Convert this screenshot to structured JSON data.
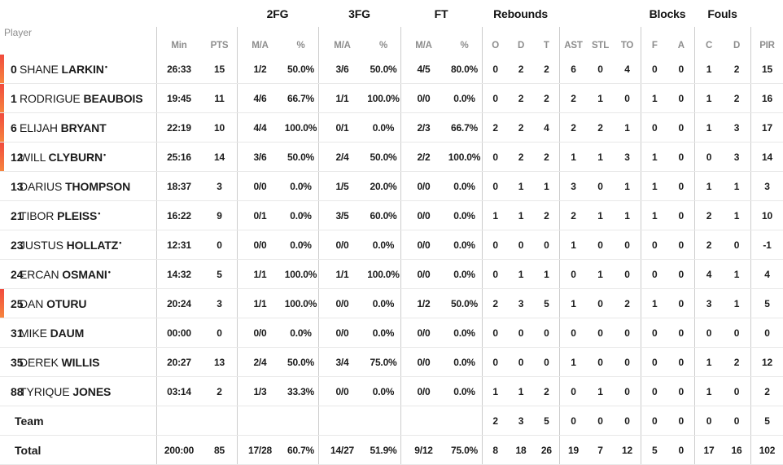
{
  "colors": {
    "accent_gradient_top": "#f14b3e",
    "accent_gradient_bottom": "#f6853e",
    "text_dark": "#1b1b1b",
    "label_gray": "#8d8d8d",
    "divider_vertical": "#cccccc",
    "divider_horizontal": "#e8e8e8"
  },
  "header": {
    "player_label": "Player",
    "group_labels": {
      "fg2": "2FG",
      "fg3": "3FG",
      "ft": "FT",
      "rebounds": "Rebounds",
      "blocks": "Blocks",
      "fouls": "Fouls"
    },
    "column_labels": [
      "Min",
      "PTS",
      "M/A",
      "%",
      "M/A",
      "%",
      "M/A",
      "%",
      "O",
      "D",
      "T",
      "AST",
      "STL",
      "TO",
      "F",
      "A",
      "C",
      "D",
      "PIR"
    ]
  },
  "starter_dot_glyph": "•",
  "rows": [
    {
      "number": "0",
      "first_name": "SHANE",
      "last_name": "LARKIN",
      "starter": true,
      "on_court": true,
      "stats": [
        "26:33",
        "15",
        "1/2",
        "50.0%",
        "3/6",
        "50.0%",
        "4/5",
        "80.0%",
        "0",
        "2",
        "2",
        "6",
        "0",
        "4",
        "0",
        "0",
        "1",
        "2",
        "15"
      ]
    },
    {
      "number": "1",
      "first_name": "RODRIGUE",
      "last_name": "BEAUBOIS",
      "starter": false,
      "on_court": true,
      "stats": [
        "19:45",
        "11",
        "4/6",
        "66.7%",
        "1/1",
        "100.0%",
        "0/0",
        "0.0%",
        "0",
        "2",
        "2",
        "2",
        "1",
        "0",
        "1",
        "0",
        "1",
        "2",
        "16"
      ]
    },
    {
      "number": "6",
      "first_name": "ELIJAH",
      "last_name": "BRYANT",
      "starter": false,
      "on_court": true,
      "stats": [
        "22:19",
        "10",
        "4/4",
        "100.0%",
        "0/1",
        "0.0%",
        "2/3",
        "66.7%",
        "2",
        "2",
        "4",
        "2",
        "2",
        "1",
        "0",
        "0",
        "1",
        "3",
        "17"
      ]
    },
    {
      "number": "12",
      "first_name": "WILL",
      "last_name": "CLYBURN",
      "starter": true,
      "on_court": true,
      "stats": [
        "25:16",
        "14",
        "3/6",
        "50.0%",
        "2/4",
        "50.0%",
        "2/2",
        "100.0%",
        "0",
        "2",
        "2",
        "1",
        "1",
        "3",
        "1",
        "0",
        "0",
        "3",
        "14"
      ]
    },
    {
      "number": "13",
      "first_name": "DARIUS",
      "last_name": "THOMPSON",
      "starter": false,
      "on_court": false,
      "stats": [
        "18:37",
        "3",
        "0/0",
        "0.0%",
        "1/5",
        "20.0%",
        "0/0",
        "0.0%",
        "0",
        "1",
        "1",
        "3",
        "0",
        "1",
        "1",
        "0",
        "1",
        "1",
        "3"
      ]
    },
    {
      "number": "21",
      "first_name": "TIBOR",
      "last_name": "PLEISS",
      "starter": true,
      "on_court": false,
      "stats": [
        "16:22",
        "9",
        "0/1",
        "0.0%",
        "3/5",
        "60.0%",
        "0/0",
        "0.0%",
        "1",
        "1",
        "2",
        "2",
        "1",
        "1",
        "1",
        "0",
        "2",
        "1",
        "10"
      ]
    },
    {
      "number": "23",
      "first_name": "JUSTUS",
      "last_name": "HOLLATZ",
      "starter": true,
      "on_court": false,
      "stats": [
        "12:31",
        "0",
        "0/0",
        "0.0%",
        "0/0",
        "0.0%",
        "0/0",
        "0.0%",
        "0",
        "0",
        "0",
        "1",
        "0",
        "0",
        "0",
        "0",
        "2",
        "0",
        "-1"
      ]
    },
    {
      "number": "24",
      "first_name": "ERCAN",
      "last_name": "OSMANI",
      "starter": true,
      "on_court": false,
      "stats": [
        "14:32",
        "5",
        "1/1",
        "100.0%",
        "1/1",
        "100.0%",
        "0/0",
        "0.0%",
        "0",
        "1",
        "1",
        "0",
        "1",
        "0",
        "0",
        "0",
        "4",
        "1",
        "4"
      ]
    },
    {
      "number": "25",
      "first_name": "DAN",
      "last_name": "OTURU",
      "starter": false,
      "on_court": true,
      "stats": [
        "20:24",
        "3",
        "1/1",
        "100.0%",
        "0/0",
        "0.0%",
        "1/2",
        "50.0%",
        "2",
        "3",
        "5",
        "1",
        "0",
        "2",
        "1",
        "0",
        "3",
        "1",
        "5"
      ]
    },
    {
      "number": "31",
      "first_name": "MIKE",
      "last_name": "DAUM",
      "starter": false,
      "on_court": false,
      "stats": [
        "00:00",
        "0",
        "0/0",
        "0.0%",
        "0/0",
        "0.0%",
        "0/0",
        "0.0%",
        "0",
        "0",
        "0",
        "0",
        "0",
        "0",
        "0",
        "0",
        "0",
        "0",
        "0"
      ]
    },
    {
      "number": "35",
      "first_name": "DEREK",
      "last_name": "WILLIS",
      "starter": false,
      "on_court": false,
      "stats": [
        "20:27",
        "13",
        "2/4",
        "50.0%",
        "3/4",
        "75.0%",
        "0/0",
        "0.0%",
        "0",
        "0",
        "0",
        "1",
        "0",
        "0",
        "0",
        "0",
        "1",
        "2",
        "12"
      ]
    },
    {
      "number": "88",
      "first_name": "TYRIQUE",
      "last_name": "JONES",
      "starter": false,
      "on_court": false,
      "stats": [
        "03:14",
        "2",
        "1/3",
        "33.3%",
        "0/0",
        "0.0%",
        "0/0",
        "0.0%",
        "1",
        "1",
        "2",
        "0",
        "1",
        "0",
        "0",
        "0",
        "1",
        "0",
        "2"
      ]
    }
  ],
  "summary_rows": [
    {
      "label": "Team",
      "stats": [
        "",
        "",
        "",
        "",
        "",
        "",
        "",
        "",
        "2",
        "3",
        "5",
        "0",
        "0",
        "0",
        "0",
        "0",
        "0",
        "0",
        "5"
      ]
    },
    {
      "label": "Total",
      "stats": [
        "200:00",
        "85",
        "17/28",
        "60.7%",
        "14/27",
        "51.9%",
        "9/12",
        "75.0%",
        "8",
        "18",
        "26",
        "19",
        "7",
        "12",
        "5",
        "0",
        "17",
        "16",
        "102"
      ]
    }
  ]
}
